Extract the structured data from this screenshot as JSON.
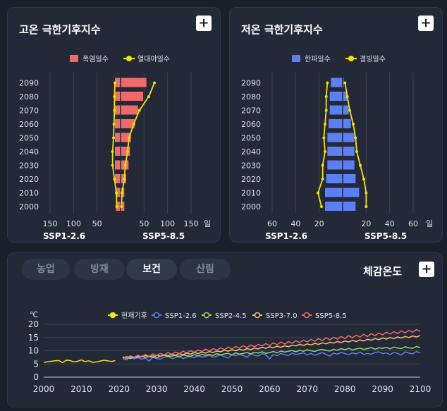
{
  "heat": {
    "title": "고온 극한기후지수",
    "add_label": "+",
    "legend": [
      {
        "label": "폭염일수",
        "color": "#f06a6a",
        "shape": "rect"
      },
      {
        "label": "열대야일수",
        "color": "#f5e300",
        "shape": "line"
      }
    ],
    "left_label": "SSP1-2.6",
    "right_label": "SSP5-8.5"
  },
  "cold": {
    "title": "저온 극한기후지수",
    "add_label": "+",
    "legend": [
      {
        "label": "한파일수",
        "color": "#5b7ff5",
        "shape": "rect"
      },
      {
        "label": "결빙일수",
        "color": "#f5e300",
        "shape": "line"
      }
    ],
    "left_label": "SSP1-2.6",
    "right_label": "SSP5-8.5"
  },
  "bottom": {
    "tabs": [
      "농업",
      "방재",
      "보건",
      "산림"
    ],
    "active_tab": 2,
    "title": "체감온도",
    "add_label": "+"
  },
  "chart_data": [
    {
      "type": "bar",
      "orientation": "horizontal-butterfly",
      "title": "고온 극한기후지수",
      "categories": [
        "2000",
        "2010",
        "2020",
        "2030",
        "2040",
        "2050",
        "2060",
        "2070",
        "2080",
        "2090"
      ],
      "x_ticks_left": [
        150,
        100,
        50
      ],
      "x_ticks_right": [
        50,
        100,
        150
      ],
      "x_unit": "일",
      "xlim": [
        -150,
        150
      ],
      "left_scenario": "SSP1-2.6",
      "right_scenario": "SSP5-8.5",
      "series": [
        {
          "name": "폭염일수",
          "color": "#f06a6a",
          "kind": "bar",
          "left": [
            10,
            10,
            12,
            12,
            12,
            12,
            12,
            12,
            12,
            12
          ],
          "right": [
            8,
            8,
            12,
            17,
            20,
            22,
            30,
            37,
            48,
            55
          ]
        },
        {
          "name": "열대야일수",
          "color": "#f5e300",
          "kind": "line",
          "left": [
            8,
            9,
            13,
            17,
            17,
            15,
            14,
            13,
            13,
            12
          ],
          "right": [
            2,
            3,
            8,
            10,
            15,
            18,
            28,
            40,
            60,
            72
          ]
        }
      ]
    },
    {
      "type": "bar",
      "orientation": "horizontal-butterfly",
      "title": "저온 극한기후지수",
      "categories": [
        "2000",
        "2010",
        "2020",
        "2030",
        "2040",
        "2050",
        "2060",
        "2070",
        "2080",
        "2090"
      ],
      "x_ticks_left": [
        60,
        40,
        20
      ],
      "x_ticks_right": [
        20,
        40,
        60
      ],
      "x_unit": "일",
      "xlim": [
        -60,
        60
      ],
      "left_scenario": "SSP1-2.6",
      "right_scenario": "SSP5-8.5",
      "series": [
        {
          "name": "한파일수",
          "color": "#5b7ff5",
          "kind": "bar",
          "left": [
            15,
            15,
            14,
            13,
            13,
            13,
            12,
            11,
            11,
            10
          ],
          "right": [
            11,
            14,
            11,
            10,
            10,
            10,
            7,
            5,
            4,
            1
          ]
        },
        {
          "name": "결빙일수",
          "color": "#f5e300",
          "kind": "line",
          "left": [
            18,
            21,
            17,
            17,
            15,
            16,
            15,
            14,
            14,
            13
          ],
          "right": [
            20,
            20,
            18,
            15,
            12,
            11,
            9,
            6,
            4,
            2
          ]
        }
      ]
    },
    {
      "type": "line",
      "title": "체감온도",
      "ylabel": "℃",
      "xlim": [
        2000,
        2100
      ],
      "ylim": [
        0,
        20
      ],
      "x_ticks": [
        2000,
        2010,
        2020,
        2030,
        2040,
        2050,
        2060,
        2070,
        2080,
        2090,
        2100
      ],
      "y_ticks": [
        0,
        5,
        10,
        15,
        20
      ],
      "series": [
        {
          "name": "현재기후",
          "color": "#f5e300",
          "x_start": 2000,
          "values": [
            5.6,
            5.8,
            6.0,
            6.2,
            6.3,
            5.5,
            6.4,
            6.3,
            5.8,
            6.0,
            6.5,
            5.9,
            6.2,
            5.6,
            5.8,
            6.1,
            6.4,
            6.2,
            5.9,
            6.3
          ]
        },
        {
          "name": "SSP1-2.6",
          "color": "#5b7ff5",
          "x_start": 2021,
          "values": [
            7.0,
            6.5,
            7.6,
            6.9,
            7.4,
            6.8,
            7.2,
            6.1,
            7.5,
            7.0,
            6.8,
            7.6,
            7.9,
            7.1,
            7.3,
            8.1,
            7.0,
            7.6,
            7.8,
            7.4,
            8.1,
            7.6,
            7.9,
            8.3,
            7.5,
            8.0,
            8.4,
            7.8,
            7.2,
            8.5,
            8.1,
            8.7,
            8.2,
            7.6,
            8.8,
            8.3,
            8.0,
            8.9,
            8.4,
            6.9,
            8.6,
            8.1,
            9.0,
            8.5,
            8.2,
            9.1,
            8.6,
            8.9,
            9.2,
            8.4,
            9.0,
            8.3,
            8.8,
            9.3,
            8.6,
            8.0,
            9.1,
            8.7,
            9.4,
            8.9,
            8.5,
            9.2,
            8.8,
            9.5,
            8.6,
            9.0,
            8.7,
            9.3,
            9.6,
            8.9,
            9.2,
            8.5,
            9.4,
            9.0,
            8.4,
            9.6,
            9.1,
            8.8,
            9.7,
            9.2
          ]
        },
        {
          "name": "SSP2-4.5",
          "color": "#8fd86a",
          "x_start": 2021,
          "values": [
            7.2,
            7.8,
            7.0,
            7.6,
            7.3,
            8.0,
            7.5,
            7.8,
            8.1,
            7.4,
            7.9,
            8.3,
            7.7,
            8.0,
            8.2,
            7.6,
            8.4,
            8.1,
            7.9,
            8.5,
            8.0,
            8.7,
            8.3,
            8.6,
            8.2,
            8.9,
            8.5,
            8.8,
            9.0,
            8.4,
            9.2,
            8.7,
            9.0,
            9.3,
            8.8,
            9.4,
            9.1,
            9.6,
            9.0,
            9.3,
            9.7,
            9.2,
            9.9,
            9.5,
            9.8,
            10.1,
            9.6,
            10.2,
            9.8,
            10.4,
            10.0,
            9.7,
            10.3,
            10.5,
            10.1,
            9.9,
            10.6,
            10.2,
            10.8,
            10.4,
            10.9,
            10.3,
            10.7,
            11.0,
            10.5,
            10.8,
            11.2,
            10.6,
            11.1,
            10.9,
            11.3,
            10.7,
            11.4,
            11.0,
            10.8,
            11.5,
            11.1,
            10.9,
            11.6,
            11.2
          ]
        },
        {
          "name": "SSP3-7.0",
          "color": "#f5c06a",
          "x_start": 2021,
          "values": [
            7.5,
            7.1,
            7.8,
            7.4,
            8.0,
            7.6,
            8.2,
            7.8,
            7.5,
            8.3,
            7.9,
            8.5,
            8.1,
            8.7,
            8.3,
            8.9,
            8.5,
            9.1,
            8.7,
            9.3,
            8.9,
            9.5,
            9.1,
            9.7,
            9.3,
            9.9,
            9.6,
            10.2,
            9.8,
            10.4,
            10.0,
            10.6,
            10.2,
            10.8,
            10.4,
            11.0,
            10.7,
            11.3,
            10.9,
            11.5,
            11.1,
            11.7,
            11.3,
            11.9,
            11.5,
            12.1,
            11.8,
            12.4,
            12.0,
            12.6,
            12.2,
            12.8,
            12.4,
            13.0,
            12.6,
            13.2,
            12.9,
            13.5,
            13.1,
            13.7,
            13.3,
            13.9,
            13.5,
            14.1,
            13.7,
            14.3,
            14.0,
            14.6,
            14.2,
            14.8,
            14.4,
            15.0,
            14.6,
            15.2,
            14.8,
            15.4,
            15.0,
            15.6,
            15.2,
            15.8
          ]
        },
        {
          "name": "SSP5-8.5",
          "color": "#f06a6a",
          "x_start": 2021,
          "values": [
            7.8,
            7.2,
            8.1,
            7.5,
            8.3,
            7.7,
            8.6,
            7.9,
            8.8,
            8.2,
            9.0,
            8.4,
            9.3,
            8.7,
            9.5,
            8.9,
            9.8,
            9.2,
            10.0,
            9.4,
            10.3,
            9.7,
            10.6,
            9.9,
            10.8,
            10.2,
            11.1,
            10.4,
            11.4,
            10.7,
            11.6,
            11.0,
            11.9,
            11.2,
            12.2,
            11.5,
            12.4,
            11.8,
            12.7,
            12.0,
            13.0,
            12.3,
            13.3,
            12.5,
            13.5,
            12.8,
            13.8,
            13.1,
            14.0,
            13.3,
            14.3,
            13.6,
            14.6,
            13.8,
            14.9,
            14.1,
            15.1,
            14.4,
            15.4,
            14.6,
            15.7,
            14.9,
            15.9,
            15.2,
            16.2,
            15.4,
            16.5,
            15.7,
            16.7,
            16.0,
            17.0,
            16.3,
            17.2,
            16.5,
            17.5,
            16.8,
            17.7,
            17.0,
            18.0,
            17.3
          ]
        }
      ]
    }
  ]
}
